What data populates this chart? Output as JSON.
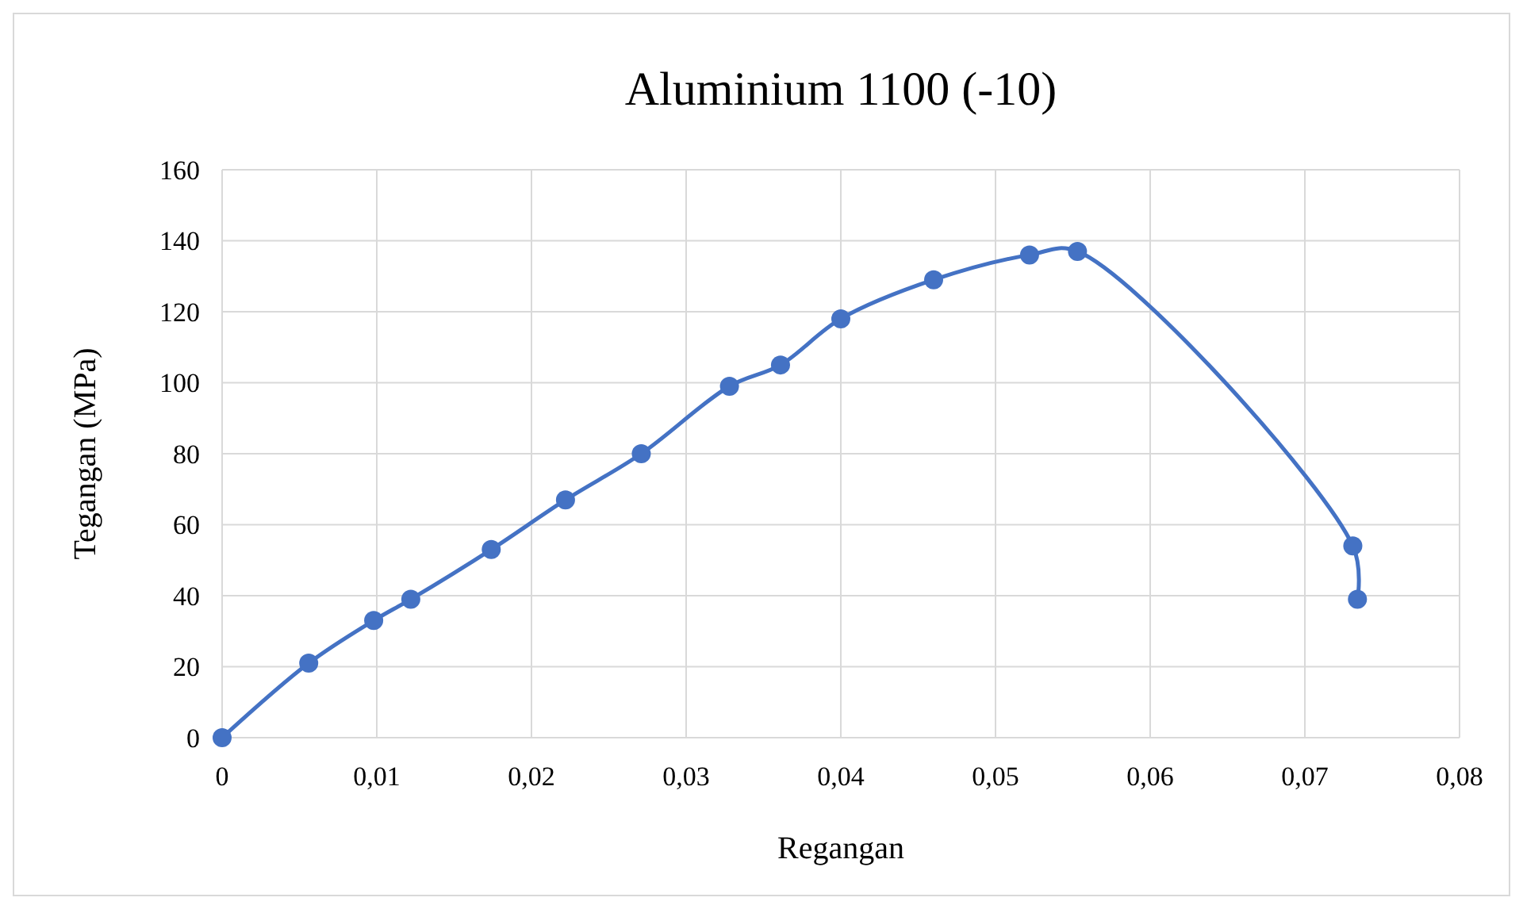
{
  "chart_data": {
    "type": "line",
    "title": "Aluminium  1100 (-10)",
    "xlabel": "Regangan",
    "ylabel": "Tegangan  (MPa)",
    "x": [
      0,
      0.0056,
      0.0098,
      0.0122,
      0.0174,
      0.0222,
      0.0271,
      0.0328,
      0.0361,
      0.04,
      0.046,
      0.0522,
      0.0553,
      0.0731,
      0.0734
    ],
    "series": [
      {
        "color": "#4472c4",
        "values": [
          0,
          21,
          33,
          39,
          53,
          67,
          80,
          99,
          105,
          118,
          129,
          136,
          137,
          54,
          39
        ]
      }
    ],
    "xlim": [
      0,
      0.08
    ],
    "xticks": [
      0,
      {
        "value": 0.01,
        "label": "0,01"
      },
      {
        "value": 0.02,
        "label": "0,02"
      },
      {
        "value": 0.03,
        "label": "0,03"
      },
      {
        "value": 0.04,
        "label": "0,04"
      },
      {
        "value": 0.05,
        "label": "0,05"
      },
      {
        "value": 0.06,
        "label": "0,06"
      },
      {
        "value": 0.07,
        "label": "0,07"
      },
      {
        "value": 0.08,
        "label": "0,08"
      }
    ],
    "ylim": [
      0,
      160
    ],
    "yticks": [
      0,
      20,
      40,
      60,
      80,
      100,
      120,
      140,
      160
    ],
    "grid": true,
    "marker": "circle",
    "line_style": "solid"
  }
}
